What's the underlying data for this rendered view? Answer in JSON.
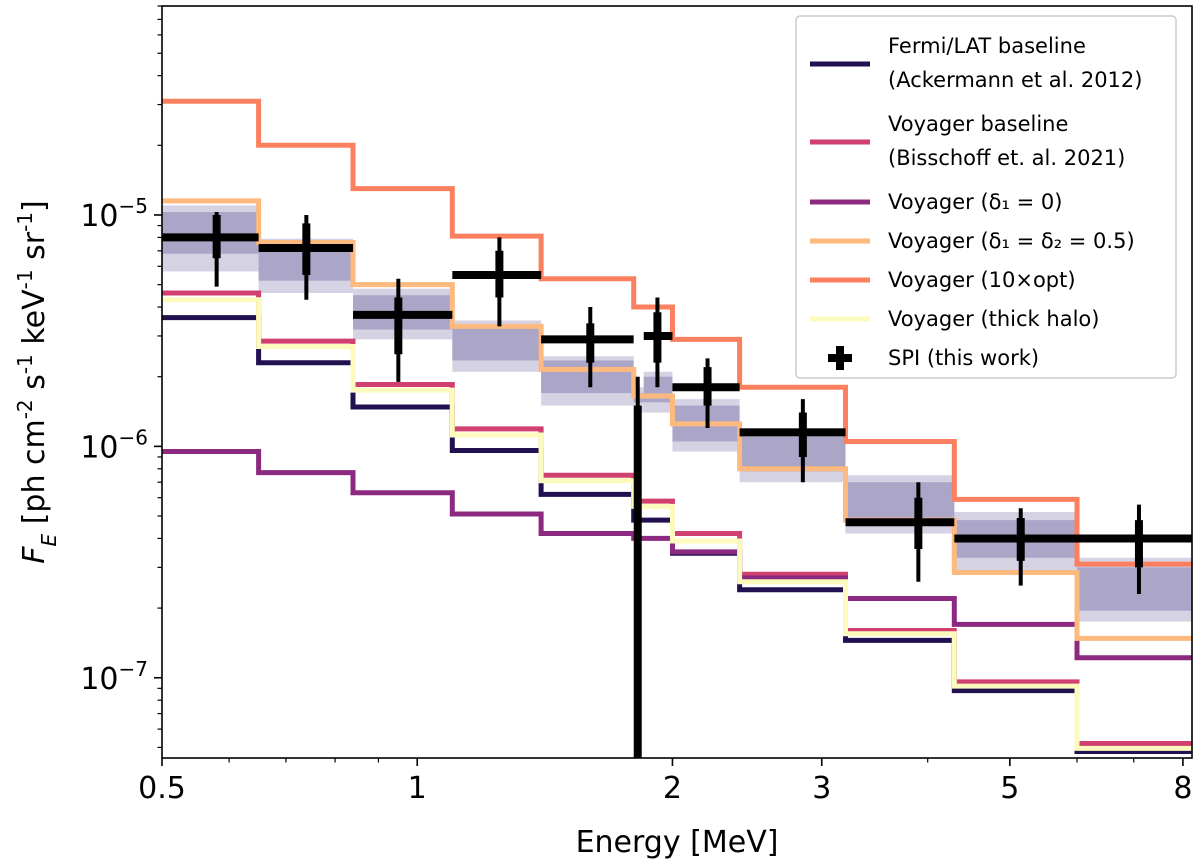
{
  "chart_data": {
    "type": "line",
    "xscale": "log",
    "yscale": "log",
    "xlim": [
      0.5,
      8.2
    ],
    "ylim": [
      4.5e-08,
      8e-05
    ],
    "xlabel": "Energy [MeV]",
    "ylabel": "F_E [ph cm^-2 s^-1 keV^-1 sr^-1]",
    "x_ticks": [
      {
        "value": 0.5,
        "label": "0.5"
      },
      {
        "value": 1,
        "label": "1"
      },
      {
        "value": 2,
        "label": "2"
      },
      {
        "value": 3,
        "label": "3"
      },
      {
        "value": 5,
        "label": "5"
      },
      {
        "value": 8,
        "label": "8"
      }
    ],
    "y_ticks": [
      {
        "value": 1e-05,
        "mant": "10",
        "exp": "−5"
      },
      {
        "value": 1e-06,
        "mant": "10",
        "exp": "−6"
      },
      {
        "value": 1e-07,
        "mant": "10",
        "exp": "−7"
      }
    ],
    "bin_edges": [
      0.5,
      0.65,
      0.84,
      1.1,
      1.4,
      1.8,
      1.85,
      2.0,
      2.4,
      3.2,
      4.3,
      6.0,
      8.2
    ],
    "band_inner": [
      [
        6.8e-06,
        1.03e-05
      ],
      [
        5.2e-06,
        7.5e-06
      ],
      [
        3.2e-06,
        4.5e-06
      ],
      [
        2.35e-06,
        3.3e-06
      ],
      [
        1.7e-06,
        2.35e-06
      ],
      [
        1.55e-06,
        1.7e-06
      ],
      [
        1.55e-06,
        2e-06
      ],
      [
        1.05e-06,
        1.5e-06
      ],
      [
        7.8e-07,
        1.1e-06
      ],
      [
        4.8e-07,
        7e-07
      ],
      [
        3.3e-07,
        4.8e-07
      ],
      [
        1.95e-07,
        3e-07
      ]
    ],
    "band_outer": [
      [
        5.7e-06,
        1.1e-05
      ],
      [
        4.6e-06,
        7.9e-06
      ],
      [
        2.9e-06,
        4.8e-06
      ],
      [
        2.1e-06,
        3.5e-06
      ],
      [
        1.5e-06,
        2.45e-06
      ],
      [
        1.4e-06,
        1.8e-06
      ],
      [
        1.4e-06,
        2.1e-06
      ],
      [
        9.5e-07,
        1.6e-06
      ],
      [
        7e-07,
        1.2e-06
      ],
      [
        4.2e-07,
        7.5e-07
      ],
      [
        2.9e-07,
        5.2e-07
      ],
      [
        1.75e-07,
        3.3e-07
      ]
    ],
    "series": [
      {
        "name": "Fermi/LAT baseline",
        "name2": "(Ackermann et al. 2012)",
        "color": "#221150",
        "values": [
          3.6e-06,
          2.3e-06,
          1.48e-06,
          9.6e-07,
          6.2e-07,
          4.8e-07,
          4.8e-07,
          3.45e-07,
          2.4e-07,
          1.45e-07,
          8.8e-08,
          4.8e-08
        ]
      },
      {
        "name": "Voyager baseline",
        "name2": "(Bisschoff et. al. 2021)",
        "color": "#d0416f",
        "values": [
          4.6e-06,
          2.85e-06,
          1.85e-06,
          1.19e-06,
          7.5e-07,
          5.8e-07,
          5.8e-07,
          4.2e-07,
          2.8e-07,
          1.6e-07,
          9.6e-08,
          5.2e-08
        ]
      },
      {
        "name": "Voyager (δ₁ = 0)",
        "name2": "",
        "color": "#8c2981",
        "values": [
          9.5e-07,
          7.7e-07,
          6.3e-07,
          5.1e-07,
          4.2e-07,
          4e-07,
          4e-07,
          3.5e-07,
          2.7e-07,
          2.2e-07,
          1.7e-07,
          1.22e-07
        ]
      },
      {
        "name": "Voyager (δ₁ = δ₂ = 0.5)",
        "name2": "",
        "color": "#fdb97e",
        "values": [
          1.15e-05,
          7.6e-06,
          5e-06,
          3.3e-06,
          2.15e-06,
          1.65e-06,
          1.65e-06,
          1.25e-06,
          8e-07,
          4.8e-07,
          2.85e-07,
          1.48e-07
        ]
      },
      {
        "name": "Voyager (10×opt)",
        "name2": "",
        "color": "#fb8060",
        "values": [
          3.1e-05,
          2e-05,
          1.3e-05,
          8.1e-06,
          5.3e-06,
          4e-06,
          4e-06,
          2.9e-06,
          1.8e-06,
          1.05e-06,
          5.9e-07,
          3.1e-07
        ]
      },
      {
        "name": "Voyager (thick halo)",
        "name2": "",
        "color": "#fcfbbd",
        "values": [
          4.3e-06,
          2.7e-06,
          1.75e-06,
          1.12e-06,
          7.1e-07,
          5.5e-07,
          5.5e-07,
          3.9e-07,
          2.6e-07,
          1.55e-07,
          9.2e-08,
          4.95e-08
        ]
      }
    ],
    "spi": {
      "name": "SPI (this work)",
      "color": "#000000",
      "points": [
        {
          "x": 0.58,
          "xlo": 0.5,
          "xhi": 0.65,
          "y": 8e-06,
          "yin": [
            6.5e-06,
            1e-05
          ],
          "yout": [
            4.9e-06,
            1.03e-05
          ]
        },
        {
          "x": 0.74,
          "xlo": 0.65,
          "xhi": 0.84,
          "y": 7.2e-06,
          "yin": [
            5.5e-06,
            9.2e-06
          ],
          "yout": [
            4.3e-06,
            1e-05
          ]
        },
        {
          "x": 0.95,
          "xlo": 0.84,
          "xhi": 1.1,
          "y": 3.7e-06,
          "yin": [
            2.5e-06,
            4.4e-06
          ],
          "yout": [
            1.9e-06,
            5.3e-06
          ]
        },
        {
          "x": 1.25,
          "xlo": 1.1,
          "xhi": 1.4,
          "y": 5.5e-06,
          "yin": [
            4.4e-06,
            7e-06
          ],
          "yout": [
            3.3e-06,
            8e-06
          ]
        },
        {
          "x": 1.6,
          "xlo": 1.4,
          "xhi": 1.8,
          "y": 2.9e-06,
          "yin": [
            2.3e-06,
            3.4e-06
          ],
          "yout": [
            1.8e-06,
            4e-06
          ]
        },
        {
          "x": 1.82,
          "xlo": 1.82,
          "xhi": 1.82,
          "y": 7.5e-07,
          "yin": [
            4.5e-08,
            1.5e-06
          ],
          "yout": [
            4.5e-08,
            2e-06
          ]
        },
        {
          "x": 1.92,
          "xlo": 1.85,
          "xhi": 2.0,
          "y": 3e-06,
          "yin": [
            2.3e-06,
            3.8e-06
          ],
          "yout": [
            1.8e-06,
            4.4e-06
          ]
        },
        {
          "x": 2.2,
          "xlo": 2.0,
          "xhi": 2.4,
          "y": 1.8e-06,
          "yin": [
            1.5e-06,
            2.2e-06
          ],
          "yout": [
            1.2e-06,
            2.4e-06
          ]
        },
        {
          "x": 2.85,
          "xlo": 2.4,
          "xhi": 3.2,
          "y": 1.15e-06,
          "yin": [
            9e-07,
            1.4e-06
          ],
          "yout": [
            7e-07,
            1.6e-06
          ]
        },
        {
          "x": 3.9,
          "xlo": 3.2,
          "xhi": 4.3,
          "y": 4.7e-07,
          "yin": [
            3.6e-07,
            6e-07
          ],
          "yout": [
            2.6e-07,
            7e-07
          ]
        },
        {
          "x": 5.15,
          "xlo": 4.3,
          "xhi": 6.0,
          "y": 4e-07,
          "yin": [
            3.2e-07,
            4.9e-07
          ],
          "yout": [
            2.5e-07,
            5.4e-07
          ]
        },
        {
          "x": 7.1,
          "xlo": 6.0,
          "xhi": 8.2,
          "y": 4e-07,
          "yin": [
            3e-07,
            4.8e-07
          ],
          "yout": [
            2.3e-07,
            5.6e-07
          ]
        }
      ]
    },
    "band_colors": {
      "inner": "#aba5c8",
      "outer": "#d5d2e4"
    },
    "legend_position": "top-right"
  }
}
